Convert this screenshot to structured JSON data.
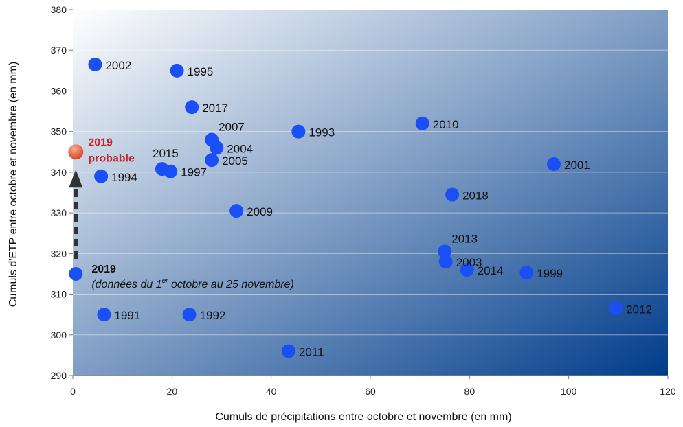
{
  "chart_data": {
    "type": "scatter",
    "xlabel": "Cumuls de précipitations entre octobre et novembre (en mm)",
    "ylabel": "Cumuls d'ETP entre octobre et novembre (en mm)",
    "xlim": [
      0,
      120
    ],
    "ylim": [
      290,
      380
    ],
    "xticks": [
      0,
      20,
      40,
      60,
      80,
      100,
      120
    ],
    "yticks": [
      290,
      300,
      310,
      320,
      330,
      340,
      350,
      360,
      370,
      380
    ],
    "grid": true,
    "colors": {
      "point": "#1a4ff5",
      "probable_top": "#f7b08a",
      "probable_bottom": "#d83a1e",
      "probable_text": "#c0242a",
      "bg_light": "#ffffff",
      "bg_dark": "#003c8a"
    },
    "points": [
      {
        "year": "1991",
        "x": 6.3,
        "y": 305,
        "label_pos": "right"
      },
      {
        "year": "1992",
        "x": 23.5,
        "y": 305,
        "label_pos": "right"
      },
      {
        "year": "1993",
        "x": 45.5,
        "y": 350,
        "label_pos": "right"
      },
      {
        "year": "1994",
        "x": 5.7,
        "y": 339,
        "label_pos": "right"
      },
      {
        "year": "1995",
        "x": 21,
        "y": 365,
        "label_pos": "right"
      },
      {
        "year": "1997",
        "x": 19.7,
        "y": 340.2,
        "label_pos": "right"
      },
      {
        "year": "1999",
        "x": 91.5,
        "y": 315.3,
        "label_pos": "right"
      },
      {
        "year": "2001",
        "x": 97,
        "y": 342,
        "label_pos": "right"
      },
      {
        "year": "2002",
        "x": 4.5,
        "y": 366.5,
        "label_pos": "right"
      },
      {
        "year": "2003",
        "x": 75.2,
        "y": 318,
        "label_pos": "right"
      },
      {
        "year": "2004",
        "x": 29,
        "y": 346,
        "label_pos": "right"
      },
      {
        "year": "2005",
        "x": 28,
        "y": 343,
        "label_pos": "right"
      },
      {
        "year": "2007",
        "x": 28,
        "y": 348,
        "label_pos": "above-right"
      },
      {
        "year": "2009",
        "x": 33,
        "y": 330.5,
        "label_pos": "right"
      },
      {
        "year": "2010",
        "x": 70.5,
        "y": 352,
        "label_pos": "right"
      },
      {
        "year": "2011",
        "x": 43.5,
        "y": 296,
        "label_pos": "right"
      },
      {
        "year": "2012",
        "x": 109.5,
        "y": 306.5,
        "label_pos": "right"
      },
      {
        "year": "2013",
        "x": 75,
        "y": 320.5,
        "label_pos": "above-right"
      },
      {
        "year": "2014",
        "x": 79.5,
        "y": 316,
        "label_pos": "right"
      },
      {
        "year": "2015",
        "x": 18,
        "y": 340.8,
        "label_pos": "above"
      },
      {
        "year": "2017",
        "x": 24,
        "y": 356,
        "label_pos": "right"
      },
      {
        "year": "2018",
        "x": 76.5,
        "y": 334.5,
        "label_pos": "right"
      }
    ],
    "current": {
      "year": "2019",
      "x": 0.6,
      "y": 315,
      "note_prefix": "(données du 1",
      "note_sup": "er",
      "note_suffix": " octobre au 25 novembre)"
    },
    "probable": {
      "x": 0.6,
      "y": 345,
      "line1": "2019",
      "line2": "probable"
    }
  }
}
